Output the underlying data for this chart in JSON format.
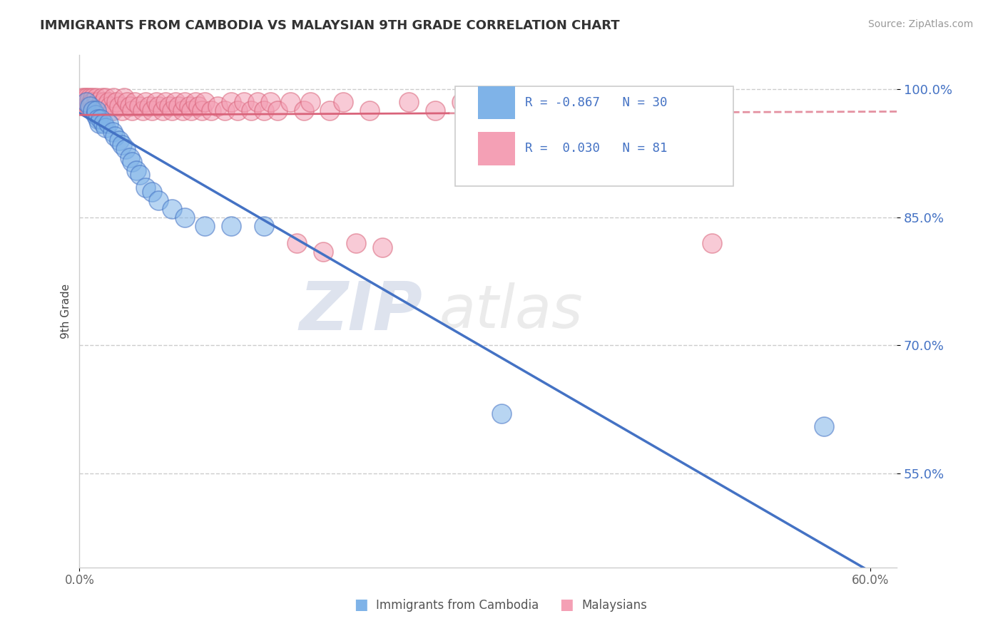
{
  "title": "IMMIGRANTS FROM CAMBODIA VS MALAYSIAN 9TH GRADE CORRELATION CHART",
  "source": "Source: ZipAtlas.com",
  "ylabel": "9th Grade",
  "xlim": [
    0.0,
    0.62
  ],
  "ylim": [
    0.44,
    1.04
  ],
  "yticks": [
    0.55,
    0.7,
    0.85,
    1.0
  ],
  "ytick_labels": [
    "55.0%",
    "70.0%",
    "85.0%",
    "100.0%"
  ],
  "color_blue": "#7fb3e8",
  "color_pink": "#f4a0b5",
  "color_blue_line": "#4472c4",
  "color_pink_line": "#d9637a",
  "watermark_zip": "ZIP",
  "watermark_atlas": "atlas",
  "blue_scatter_x": [
    0.005,
    0.008,
    0.01,
    0.012,
    0.013,
    0.014,
    0.015,
    0.016,
    0.018,
    0.02,
    0.022,
    0.025,
    0.027,
    0.03,
    0.032,
    0.035,
    0.038,
    0.04,
    0.043,
    0.046,
    0.05,
    0.055,
    0.06,
    0.07,
    0.08,
    0.095,
    0.115,
    0.14,
    0.32,
    0.565
  ],
  "blue_scatter_y": [
    0.985,
    0.98,
    0.975,
    0.97,
    0.975,
    0.965,
    0.96,
    0.965,
    0.96,
    0.955,
    0.96,
    0.95,
    0.945,
    0.94,
    0.935,
    0.93,
    0.92,
    0.915,
    0.905,
    0.9,
    0.885,
    0.88,
    0.87,
    0.86,
    0.85,
    0.84,
    0.84,
    0.84,
    0.62,
    0.605
  ],
  "pink_scatter_x": [
    0.002,
    0.003,
    0.004,
    0.005,
    0.005,
    0.006,
    0.007,
    0.007,
    0.008,
    0.009,
    0.01,
    0.01,
    0.011,
    0.012,
    0.013,
    0.014,
    0.015,
    0.016,
    0.017,
    0.018,
    0.019,
    0.02,
    0.022,
    0.023,
    0.025,
    0.026,
    0.028,
    0.03,
    0.032,
    0.034,
    0.036,
    0.038,
    0.04,
    0.042,
    0.045,
    0.048,
    0.05,
    0.053,
    0.055,
    0.058,
    0.06,
    0.063,
    0.065,
    0.068,
    0.07,
    0.073,
    0.075,
    0.078,
    0.08,
    0.083,
    0.085,
    0.088,
    0.09,
    0.093,
    0.095,
    0.1,
    0.105,
    0.11,
    0.115,
    0.12,
    0.125,
    0.13,
    0.135,
    0.14,
    0.145,
    0.15,
    0.16,
    0.165,
    0.17,
    0.175,
    0.185,
    0.19,
    0.2,
    0.21,
    0.22,
    0.23,
    0.25,
    0.27,
    0.29,
    0.31,
    0.48
  ],
  "pink_scatter_y": [
    0.99,
    0.985,
    0.99,
    0.985,
    0.98,
    0.99,
    0.985,
    0.98,
    0.99,
    0.985,
    0.99,
    0.985,
    0.98,
    0.975,
    0.99,
    0.985,
    0.98,
    0.975,
    0.99,
    0.985,
    0.98,
    0.99,
    0.985,
    0.98,
    0.975,
    0.99,
    0.985,
    0.98,
    0.975,
    0.99,
    0.985,
    0.98,
    0.975,
    0.985,
    0.98,
    0.975,
    0.985,
    0.98,
    0.975,
    0.985,
    0.98,
    0.975,
    0.985,
    0.98,
    0.975,
    0.985,
    0.98,
    0.975,
    0.985,
    0.98,
    0.975,
    0.985,
    0.98,
    0.975,
    0.985,
    0.975,
    0.98,
    0.975,
    0.985,
    0.975,
    0.985,
    0.975,
    0.985,
    0.975,
    0.985,
    0.975,
    0.985,
    0.82,
    0.975,
    0.985,
    0.81,
    0.975,
    0.985,
    0.82,
    0.975,
    0.815,
    0.985,
    0.975,
    0.985,
    0.975,
    0.82
  ],
  "blue_line_x0": 0.0,
  "blue_line_y0": 0.972,
  "blue_line_x1": 0.6,
  "blue_line_y1": 0.435,
  "pink_line_solid_x0": 0.0,
  "pink_line_solid_y0": 0.97,
  "pink_line_solid_x1": 0.28,
  "pink_line_solid_y1": 0.972,
  "pink_line_dash_x0": 0.28,
  "pink_line_dash_y0": 0.972,
  "pink_line_dash_x1": 0.62,
  "pink_line_dash_y1": 0.974
}
